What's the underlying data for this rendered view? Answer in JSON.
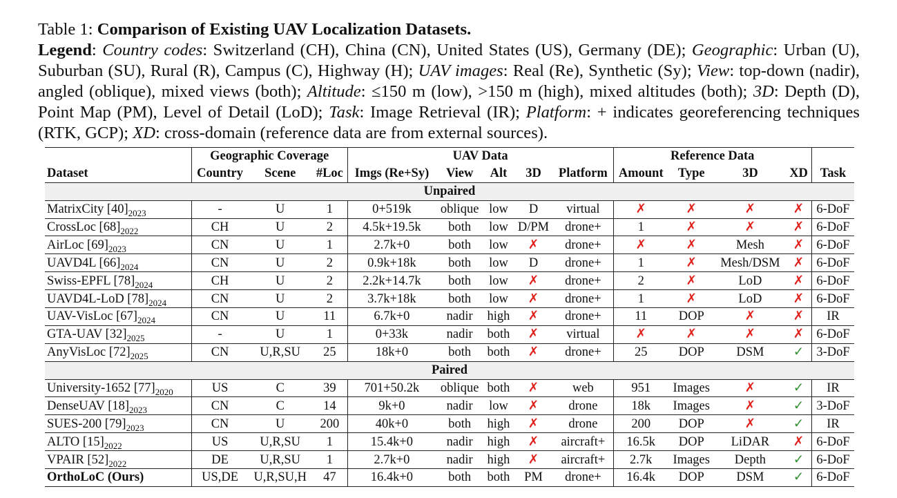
{
  "caption": {
    "label": "Table 1:",
    "title": "Comparison of Existing UAV Localization Datasets."
  },
  "legend": {
    "label": "Legend",
    "entries": [
      {
        "term": "Country codes",
        "text": ": Switzerland (CH), China (CN), United States (US), Germany (DE);"
      },
      {
        "term": "Geographic",
        "text": ": Urban (U), Suburban (SU), Rural (R), Campus (C), Highway (H);"
      },
      {
        "term": "UAV images",
        "text": ": Real (Re), Synthetic (Sy);"
      },
      {
        "term": "View",
        "text": ": top-down (nadir), angled (oblique), mixed views (both);"
      },
      {
        "term": "Altitude",
        "text": ": ≤150 m (low), >150 m (high), mixed altitudes (both);"
      },
      {
        "term": "3D",
        "text": ": Depth (D), Point Map (PM), Level of Detail (LoD);"
      },
      {
        "term": "Task",
        "text": ": Image Retrieval (IR);"
      },
      {
        "term": "Platform",
        "text": ": + indicates georeferencing techniques (RTK, GCP);"
      },
      {
        "term": "XD",
        "text": ": cross-domain (reference data are from external sources)."
      }
    ]
  },
  "table": {
    "groups": [
      "Geographic Coverage",
      "UAV Data",
      "Reference Data"
    ],
    "columns": [
      "Dataset",
      "Country",
      "Scene",
      "#Loc",
      "Imgs (Re+Sy)",
      "View",
      "Alt",
      "3D",
      "Platform",
      "Amount",
      "Type",
      "3D",
      "XD",
      "Task"
    ],
    "mark_colors": {
      "✗": "#e0201b",
      "✓": "#2f8f2f"
    },
    "sections": [
      {
        "title": "Unpaired",
        "rows": [
          {
            "dataset": {
              "name": "MatrixCity [40]",
              "year": "2023"
            },
            "cells": [
              "-",
              "U",
              1,
              "0+519k",
              "oblique",
              "low",
              "D",
              "virtual",
              "✗",
              "✗",
              "✗",
              "✗",
              "6-DoF"
            ]
          },
          {
            "dataset": {
              "name": "CrossLoc [68]",
              "year": "2022"
            },
            "cells": [
              "CH",
              "U",
              2,
              "4.5k+19.5k",
              "both",
              "low",
              "D/PM",
              "drone+",
              1,
              "✗",
              "✗",
              "✗",
              "6-DoF"
            ]
          },
          {
            "dataset": {
              "name": "AirLoc [69]",
              "year": "2023"
            },
            "cells": [
              "CN",
              "U",
              1,
              "2.7k+0",
              "both",
              "low",
              "✗",
              "drone+",
              "✗",
              "✗",
              "Mesh",
              "✗",
              "6-DoF"
            ]
          },
          {
            "dataset": {
              "name": "UAVD4L [66]",
              "year": "2024"
            },
            "cells": [
              "CN",
              "U",
              2,
              "0.9k+18k",
              "both",
              "low",
              "D",
              "drone+",
              1,
              "✗",
              "Mesh/DSM",
              "✗",
              "6-DoF"
            ]
          },
          {
            "dataset": {
              "name": "Swiss-EPFL [78]",
              "year": "2024"
            },
            "cells": [
              "CH",
              "U",
              2,
              "2.2k+14.7k",
              "both",
              "low",
              "✗",
              "drone+",
              2,
              "✗",
              "LoD",
              "✗",
              "6-DoF"
            ]
          },
          {
            "dataset": {
              "name": "UAVD4L-LoD [78]",
              "year": "2024"
            },
            "cells": [
              "CN",
              "U",
              2,
              "3.7k+18k",
              "both",
              "low",
              "✗",
              "drone+",
              1,
              "✗",
              "LoD",
              "✗",
              "6-DoF"
            ]
          },
          {
            "dataset": {
              "name": "UAV-VisLoc [67]",
              "year": "2024"
            },
            "cells": [
              "CN",
              "U",
              11,
              "6.7k+0",
              "nadir",
              "high",
              "✗",
              "drone+",
              11,
              "DOP",
              "✗",
              "✗",
              "IR"
            ]
          },
          {
            "dataset": {
              "name": "GTA-UAV [32]",
              "year": "2025"
            },
            "cells": [
              "-",
              "U",
              1,
              "0+33k",
              "nadir",
              "both",
              "✗",
              "virtual",
              "✗",
              "✗",
              "✗",
              "✗",
              "6-DoF"
            ]
          },
          {
            "dataset": {
              "name": "AnyVisLoc [72]",
              "year": "2025"
            },
            "cells": [
              "CN",
              "U,R,SU",
              25,
              "18k+0",
              "both",
              "both",
              "✗",
              "drone+",
              25,
              "DOP",
              "DSM",
              "✓",
              "3-DoF"
            ]
          }
        ]
      },
      {
        "title": "Paired",
        "rows": [
          {
            "dataset": {
              "name": "University-1652 [77]",
              "year": "2020"
            },
            "cells": [
              "US",
              "C",
              39,
              "701+50.2k",
              "oblique",
              "both",
              "✗",
              "web",
              951,
              "Images",
              "✗",
              "✓",
              "IR"
            ]
          },
          {
            "dataset": {
              "name": "DenseUAV [18]",
              "year": "2023"
            },
            "cells": [
              "CN",
              "C",
              14,
              "9k+0",
              "nadir",
              "low",
              "✗",
              "drone",
              "18k",
              "Images",
              "✗",
              "✓",
              "3-DoF"
            ]
          },
          {
            "dataset": {
              "name": "SUES-200 [79]",
              "year": "2023"
            },
            "cells": [
              "CN",
              "U",
              200,
              "40k+0",
              "both",
              "high",
              "✗",
              "drone",
              200,
              "DOP",
              "✗",
              "✓",
              "IR"
            ]
          },
          {
            "dataset": {
              "name": "ALTO [15]",
              "year": "2022"
            },
            "cells": [
              "US",
              "U,R,SU",
              1,
              "15.4k+0",
              "nadir",
              "high",
              "✗",
              "aircraft+",
              "16.5k",
              "DOP",
              "LiDAR",
              "✗",
              "6-DoF"
            ]
          },
          {
            "dataset": {
              "name": "VPAIR [52]",
              "year": "2022"
            },
            "cells": [
              "DE",
              "U,R,SU",
              1,
              "2.7k+0",
              "nadir",
              "high",
              "✗",
              "aircraft+",
              "2.7k",
              "Images",
              "Depth",
              "✓",
              "6-DoF"
            ]
          },
          {
            "dataset": {
              "name": "OrthoLoC (Ours)"
            },
            "cells": [
              "US,DE",
              "U,R,SU,H",
              47,
              "16.4k+0",
              "both",
              "both",
              "PM",
              "drone+",
              "16.4k",
              "DOP",
              "DSM",
              "✓",
              "6-DoF"
            ]
          }
        ]
      }
    ]
  }
}
